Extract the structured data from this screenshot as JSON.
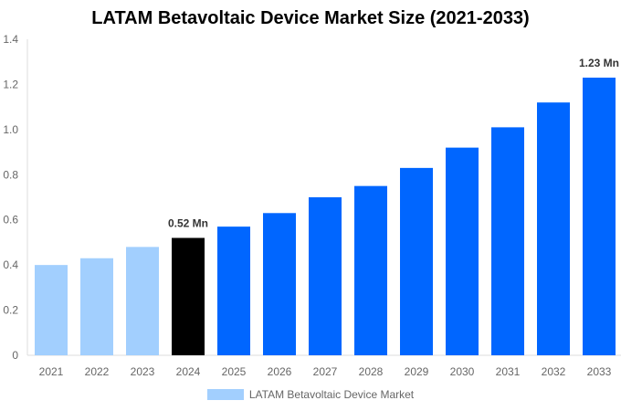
{
  "chart_data": {
    "type": "bar",
    "title": "LATAM Betavoltaic Device Market Size (2021-2033)",
    "categories": [
      "2021",
      "2022",
      "2023",
      "2024",
      "2025",
      "2026",
      "2027",
      "2028",
      "2029",
      "2030",
      "2031",
      "2032",
      "2033"
    ],
    "series": [
      {
        "name": "LATAM Betavoltaic Device Market",
        "values": [
          0.4,
          0.43,
          0.48,
          0.52,
          0.57,
          0.63,
          0.7,
          0.75,
          0.83,
          0.92,
          1.01,
          1.12,
          1.23
        ]
      }
    ],
    "bar_colors": {
      "historical": "#a2cffe",
      "base_year": "#000000",
      "forecast": "#0066ff"
    },
    "data_labels": [
      {
        "category": "2024",
        "text": "0.52 Mn"
      },
      {
        "category": "2033",
        "text": "1.23 Mn"
      }
    ],
    "ylim": [
      0,
      1.4
    ],
    "yticks": [
      "0",
      "0.2",
      "0.4",
      "0.6",
      "0.8",
      "1.0",
      "1.2",
      "1.4"
    ],
    "xlabel": "",
    "ylabel": "",
    "grid": false,
    "legend": "bottom"
  }
}
